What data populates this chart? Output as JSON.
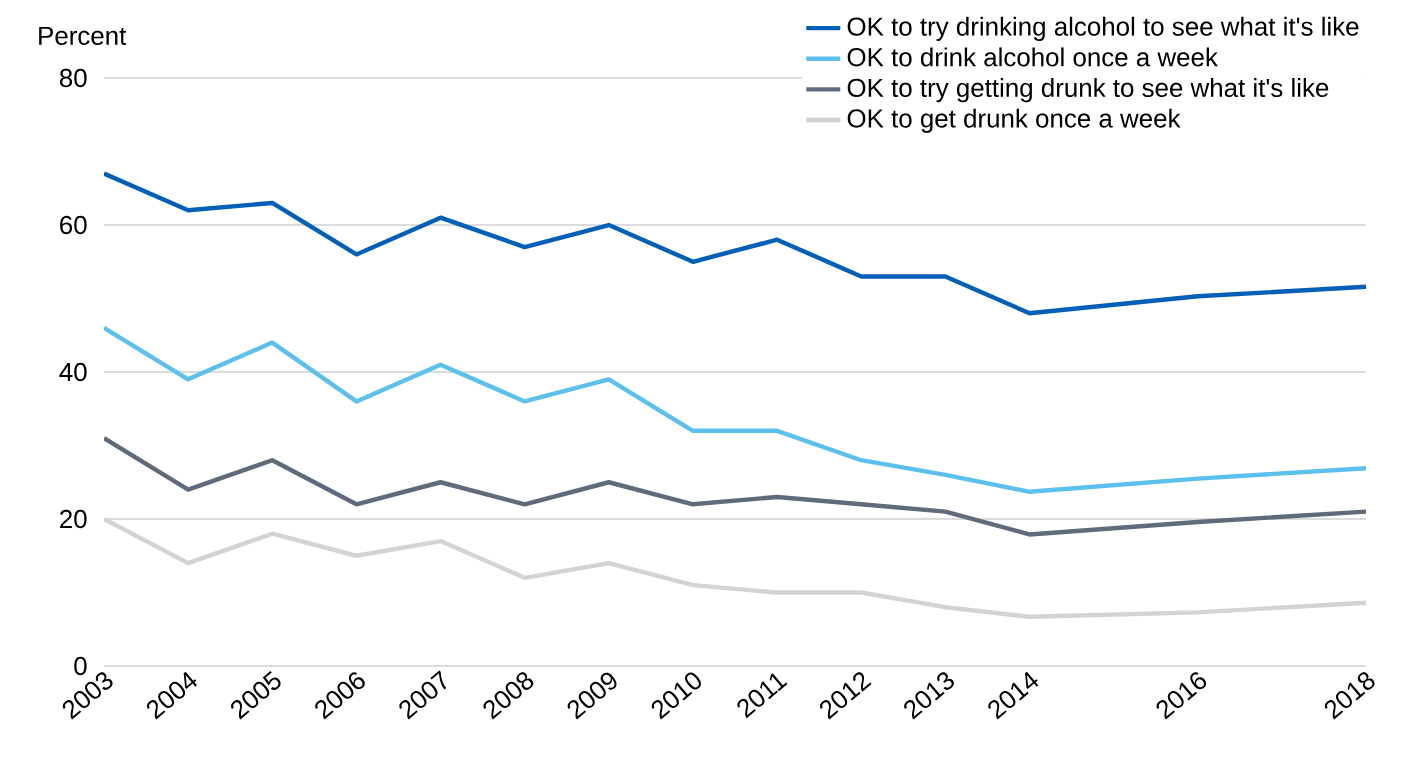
{
  "chart_data": {
    "type": "line",
    "ylabel": "Percent",
    "x": [
      2003,
      2004,
      2005,
      2006,
      2007,
      2008,
      2009,
      2010,
      2011,
      2012,
      2013,
      2014,
      2016,
      2018
    ],
    "xlim": [
      2003,
      2018
    ],
    "xticks": [
      2003,
      2004,
      2005,
      2006,
      2007,
      2008,
      2009,
      2010,
      2011,
      2012,
      2013,
      2014,
      2016,
      2018
    ],
    "ylim": [
      0,
      80
    ],
    "yticks": [
      0,
      20,
      40,
      60,
      80
    ],
    "grid": "y",
    "legend": "top right",
    "marker": "none",
    "line_style": "solid",
    "series": [
      {
        "name": "OK to try drinking alcohol to see what it's like",
        "color": "#0060b8",
        "values": [
          67,
          62,
          63,
          56,
          61,
          57,
          60,
          55,
          58,
          53,
          53,
          48,
          50.3,
          51.6
        ]
      },
      {
        "name": "OK to drink alcohol once a week",
        "color": "#5bc0eb",
        "values": [
          46,
          39,
          44,
          36,
          41,
          36,
          39,
          32,
          32,
          28,
          26,
          23.7,
          25.5,
          26.9
        ]
      },
      {
        "name": "OK to try getting drunk to see what it's like",
        "color": "#5f6b7a",
        "values": [
          31,
          24,
          28,
          22,
          25,
          22,
          25,
          22,
          23,
          22,
          21,
          17.9,
          19.6,
          21.0
        ]
      },
      {
        "name": "OK to get drunk once a week",
        "color": "#d0d4d4",
        "values": [
          20,
          14,
          18,
          15,
          17,
          12,
          14,
          11,
          10,
          10,
          8,
          6.7,
          7.3,
          8.6
        ]
      }
    ]
  }
}
